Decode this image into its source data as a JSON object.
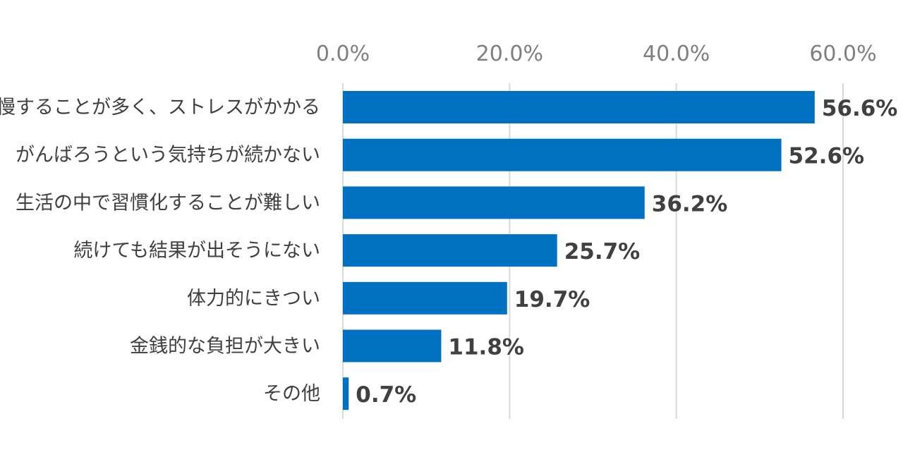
{
  "chart_data": {
    "type": "bar",
    "orientation": "horizontal",
    "categories": [
      "我慢することが多く、ストレスがかかる",
      "がんばろうという気持ちが続かない",
      "生活の中で習慣化することが難しい",
      "続けても結果が出そうにない",
      "体力的にきつい",
      "金銭的な負担が大きい",
      "その他"
    ],
    "values": [
      56.6,
      52.6,
      36.2,
      25.7,
      19.7,
      11.8,
      0.7
    ],
    "value_labels": [
      "56.6%",
      "52.6%",
      "36.2%",
      "25.7%",
      "19.7%",
      "11.8%",
      "0.7%"
    ],
    "xlim": [
      0,
      60
    ],
    "x_ticks": [
      0,
      20,
      40,
      60
    ],
    "x_tick_labels": [
      "0.0%",
      "20.0%",
      "40.0%",
      "60.0%"
    ],
    "axis_position": "top",
    "grid": true,
    "title": "",
    "xlabel": "",
    "ylabel": "",
    "bar_color": "#0070c0",
    "grid_color": "#d9d9d9",
    "label_color": "#404040",
    "tick_color": "#7f7f7f"
  }
}
